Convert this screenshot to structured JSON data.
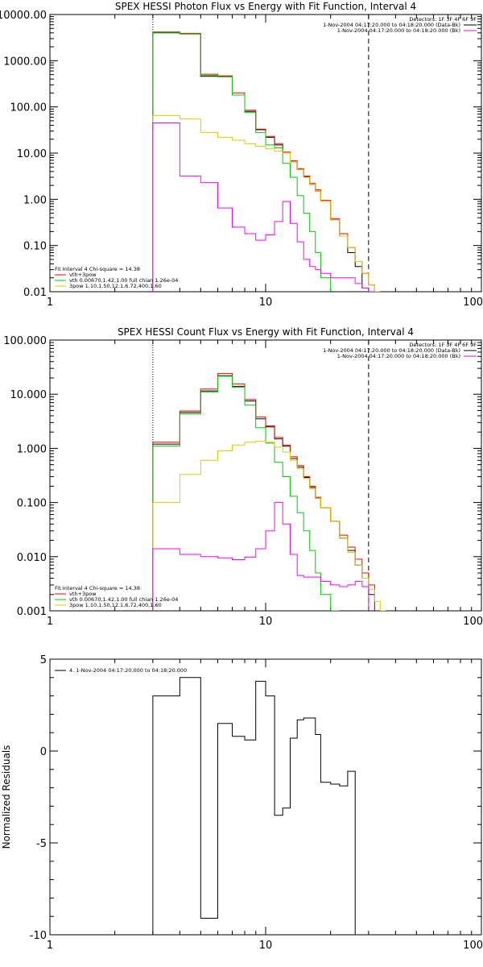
{
  "chart_data": [
    {
      "type": "line",
      "title": "SPEX HESSI Photon Flux vs Energy with Fit Function, Interval 4",
      "xlabel": "",
      "ylabel": "",
      "x_scale": "log",
      "y_scale": "log",
      "xlim": [
        1,
        100
      ],
      "ylim": [
        0.01,
        10000
      ],
      "x_ticks": [
        1,
        10,
        100
      ],
      "x_tick_labels": [
        "1",
        "10",
        "100"
      ],
      "y_ticks": [
        0.01,
        0.1,
        1,
        10,
        100,
        1000,
        10000
      ],
      "y_tick_labels": [
        "0.01",
        "0.10",
        "1.00",
        "10.00",
        "100.00",
        "1000.00",
        "10000.00"
      ],
      "vlines": [
        {
          "x": 3,
          "style": "dotted"
        },
        {
          "x": 30,
          "style": "dashed"
        }
      ],
      "legend_right": {
        "position": "top-right",
        "lines": [
          {
            "text": "Detectors: 1F 3F 4F 6F 9F",
            "color": ""
          },
          {
            "text": "1-Nov-2004 04:17:20.000 to 04:18:20.000 (Data-Bk)",
            "color": "#000000"
          },
          {
            "text": "1-Nov-2004 04:17:20.000 to 04:18:20.000 (Bk)",
            "color": "#ff00ff"
          }
        ]
      },
      "legend_left": {
        "position": "bottom-left",
        "lines": [
          {
            "text": "Fit Interval 4   Chi-square = 14.38",
            "color": ""
          },
          {
            "text": "vth+3pow",
            "color": "#ff0000"
          },
          {
            "text": "vth 0.00670,1.42,1.00  full chian 1.26e-04",
            "color": "#00cc00"
          },
          {
            "text": "3pow 1.10,1.50,12.1,6.72,400,1.60",
            "color": "#ddcc00"
          }
        ]
      },
      "bin_edges": [
        3,
        4,
        5,
        6,
        7,
        8,
        9,
        10,
        11,
        12,
        13,
        14,
        15,
        16,
        17,
        18,
        20,
        22,
        24,
        26,
        28,
        30,
        32,
        34,
        36
      ],
      "series": [
        {
          "name": "Data-Bk",
          "color": "#000000",
          "values": [
            4000,
            3800,
            460,
            450,
            180,
            80,
            32,
            22,
            15,
            10,
            6.5,
            4.4,
            3.1,
            2.1,
            1.5,
            0.9,
            0.36,
            0.16,
            0.07,
            0.035,
            0.012,
            null,
            null,
            null
          ]
        },
        {
          "name": "vth+3pow",
          "color": "#ff0000",
          "values": [
            4200,
            3900,
            510,
            470,
            200,
            85,
            33,
            23,
            16,
            10.5,
            6.8,
            4.6,
            3.2,
            2.2,
            1.6,
            0.95,
            0.38,
            0.18,
            0.09,
            0.045,
            0.025,
            0.014,
            null,
            null
          ]
        },
        {
          "name": "vth",
          "color": "#00cc00",
          "values": [
            4100,
            3800,
            480,
            450,
            180,
            75,
            28,
            15,
            13,
            6,
            3,
            1.2,
            0.5,
            0.2,
            0.07,
            0.02,
            null,
            null,
            null,
            null,
            null,
            null,
            null,
            null
          ]
        },
        {
          "name": "3pow",
          "color": "#ddcc00",
          "values": [
            65,
            55,
            28,
            22,
            19,
            16,
            14,
            12.5,
            11,
            10,
            6.5,
            4.4,
            3,
            2.1,
            1.5,
            0.9,
            0.36,
            0.16,
            0.09,
            0.045,
            0.025,
            0.014,
            0.01,
            null
          ]
        },
        {
          "name": "Bk",
          "color": "#ff00ff",
          "values": [
            45,
            3.2,
            2.3,
            0.65,
            0.25,
            0.18,
            0.13,
            0.17,
            0.33,
            0.9,
            0.3,
            0.12,
            0.05,
            0.035,
            0.03,
            0.025,
            0.02,
            0.02,
            0.02,
            0.015,
            0.012,
            0.01,
            null,
            null
          ]
        }
      ]
    },
    {
      "type": "line",
      "title": "SPEX HESSI Count Flux vs Energy with Fit Function, Interval 4",
      "xlabel": "",
      "ylabel": "",
      "x_scale": "log",
      "y_scale": "log",
      "xlim": [
        1,
        100
      ],
      "ylim": [
        0.001,
        100
      ],
      "x_ticks": [
        1,
        10,
        100
      ],
      "x_tick_labels": [
        "1",
        "10",
        "100"
      ],
      "y_ticks": [
        0.001,
        0.01,
        0.1,
        1,
        10,
        100
      ],
      "y_tick_labels": [
        "0.001",
        "0.010",
        "0.100",
        "1.000",
        "10.000",
        "100.000"
      ],
      "vlines": [
        {
          "x": 3,
          "style": "dotted"
        },
        {
          "x": 30,
          "style": "dashed"
        }
      ],
      "legend_right": {
        "position": "top-right",
        "lines": [
          {
            "text": "Detectors: 1F 3F 4F 6F 9F",
            "color": ""
          },
          {
            "text": "1-Nov-2004 04:17:20.000 to 04:18:20.000 (Data-Bk)",
            "color": "#000000"
          },
          {
            "text": "1-Nov-2004 04:17:20.000 to 04:18:20.000 (Bk)",
            "color": "#ff00ff"
          }
        ]
      },
      "legend_left": {
        "position": "bottom-left",
        "lines": [
          {
            "text": "Fit Interval 4   Chi-square = 14.38",
            "color": ""
          },
          {
            "text": "vth+3pow",
            "color": "#ff0000"
          },
          {
            "text": "vth 0.00670,1.42,1.00  full chian 1.26e-04",
            "color": "#00cc00"
          },
          {
            "text": "3pow 1.10,1.50,12.1,6.72,400,1.60",
            "color": "#ddcc00"
          }
        ]
      },
      "bin_edges": [
        3,
        4,
        5,
        6,
        7,
        8,
        9,
        10,
        11,
        12,
        13,
        14,
        15,
        16,
        17,
        18,
        20,
        22,
        24,
        26,
        28,
        30,
        32,
        34,
        36
      ],
      "series": [
        {
          "name": "Data-Bk",
          "color": "#000000",
          "values": [
            1.2,
            4.6,
            11.5,
            22,
            14,
            7.5,
            3.5,
            2.5,
            1.5,
            1.1,
            0.65,
            0.45,
            0.29,
            0.19,
            0.12,
            0.08,
            0.045,
            0.022,
            0.013,
            0.007,
            0.004,
            0.002,
            null,
            null
          ]
        },
        {
          "name": "vth+3pow",
          "color": "#ff0000",
          "values": [
            1.3,
            4.9,
            12.5,
            24,
            15.5,
            8,
            3.8,
            2.6,
            1.6,
            1.15,
            0.7,
            0.48,
            0.3,
            0.2,
            0.125,
            0.08,
            0.045,
            0.025,
            0.015,
            0.009,
            0.005,
            0.003,
            null,
            null
          ]
        },
        {
          "name": "vth",
          "color": "#00cc00",
          "values": [
            1.1,
            4.3,
            11,
            21.5,
            13.5,
            6.3,
            2.4,
            1.25,
            0.55,
            0.3,
            0.13,
            0.065,
            0.03,
            0.013,
            0.005,
            0.002,
            0.001,
            null,
            null,
            null,
            null,
            null,
            null,
            null
          ]
        },
        {
          "name": "3pow",
          "color": "#ddcc00",
          "values": [
            0.1,
            0.33,
            0.6,
            0.9,
            1.15,
            1.3,
            1.35,
            1.3,
            1.05,
            0.85,
            0.6,
            0.42,
            0.28,
            0.18,
            0.12,
            0.08,
            0.045,
            0.022,
            0.012,
            0.007,
            0.004,
            0.0025,
            0.0015,
            0.001
          ]
        },
        {
          "name": "Bk",
          "color": "#ff00ff",
          "values": [
            0.014,
            0.011,
            0.01,
            0.0095,
            0.0088,
            0.0098,
            0.014,
            0.03,
            0.1,
            0.04,
            0.011,
            0.0045,
            0.0042,
            0.0042,
            0.0042,
            0.0035,
            0.003,
            0.0028,
            0.003,
            0.0035,
            0.0028,
            null,
            null,
            null
          ]
        }
      ]
    },
    {
      "type": "line",
      "title": "",
      "xlabel": "",
      "ylabel": "Normalized Residuals",
      "x_scale": "log",
      "y_scale": "linear",
      "xlim": [
        1,
        100
      ],
      "ylim": [
        -10,
        5
      ],
      "x_ticks": [
        1,
        10,
        100
      ],
      "x_tick_labels": [
        "1",
        "10",
        "100"
      ],
      "y_ticks": [
        -10,
        -5,
        0,
        5
      ],
      "y_tick_labels": [
        "-10",
        "-5",
        "0",
        "5"
      ],
      "legend": {
        "position": "top-left",
        "lines": [
          {
            "text": "4. 1-Nov-2004 04:17:20.000 to 04:18:20.000",
            "color": "#000000"
          }
        ]
      },
      "bin_edges": [
        3,
        4,
        5,
        6,
        7,
        8,
        9,
        10,
        11,
        12,
        13,
        14,
        15,
        16,
        17,
        18,
        20,
        22,
        24,
        26,
        28,
        30
      ],
      "series": [
        {
          "name": "",
          "color": "#000000",
          "values": [
            3.0,
            4.0,
            -9.1,
            1.5,
            0.8,
            0.6,
            3.8,
            3.0,
            -3.5,
            -3.1,
            0.7,
            1.7,
            1.8,
            1.8,
            0.9,
            -1.7,
            -1.8,
            -1.9,
            -1.1,
            null,
            null
          ]
        }
      ]
    }
  ]
}
